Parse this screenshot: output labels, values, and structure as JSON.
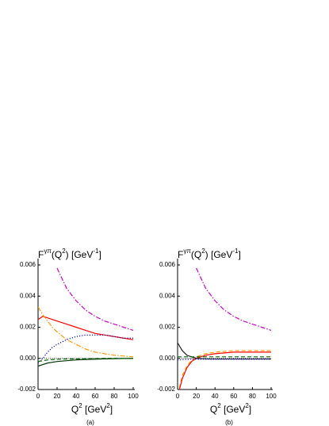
{
  "chart_data": [
    {
      "type": "line",
      "panel_label": "(a)",
      "ylabel_parts": [
        "F",
        "γπ",
        "(Q",
        "2",
        ") [GeV",
        "-1",
        "]"
      ],
      "xlabel_parts": [
        "Q",
        "2",
        " [GeV",
        "2",
        "]"
      ],
      "x": [
        0,
        5,
        10,
        15,
        20,
        30,
        40,
        50,
        60,
        70,
        80,
        90,
        100
      ],
      "xlim": [
        0,
        100
      ],
      "xticks": [
        0,
        20,
        40,
        60,
        80,
        100
      ],
      "ylim": [
        -0.002,
        0.006
      ],
      "yticks": [
        {
          "value": -0.002,
          "label": "-0.002"
        },
        {
          "value": 0,
          "label": "0.000"
        },
        {
          "value": 0.002,
          "label": "0.002"
        },
        {
          "value": 0.004,
          "label": "0.004"
        },
        {
          "value": 0.006,
          "label": "0.006"
        }
      ],
      "series": [
        {
          "color": "#cc00cc",
          "dash": "dashdot",
          "values": [
            null,
            null,
            null,
            null,
            0.0058,
            0.0045,
            0.0037,
            0.0031,
            0.0027,
            0.0024,
            0.0022,
            0.002,
            0.0018
          ]
        },
        {
          "color": "#ff0000",
          "dash": "solid",
          "values": [
            0.0025,
            0.0027,
            0.0026,
            0.0025,
            0.0024,
            0.0022,
            0.002,
            0.0018,
            0.0016,
            0.0015,
            0.0014,
            0.0013,
            0.0012
          ]
        },
        {
          "color": "#ff9900",
          "dash": "dashdot",
          "values": [
            0.0033,
            0.0028,
            0.0024,
            0.002,
            0.0017,
            0.0012,
            0.0009,
            0.0006,
            0.0004,
            0.0003,
            0.0002,
            0.00015,
            0.0001
          ]
        },
        {
          "color": "#0000cc",
          "dash": "dotted",
          "values": [
            -0.0003,
            0,
            0.0004,
            0.0007,
            0.0009,
            0.0012,
            0.0014,
            0.0015,
            0.0015,
            0.0015,
            0.0014,
            0.0013,
            0.0013
          ]
        },
        {
          "color": "#003300",
          "dash": "solid",
          "values": [
            -0.0005,
            -0.0004,
            -0.0003,
            -0.00025,
            -0.0002,
            -0.00015,
            -0.0001,
            -7e-05,
            -5e-05,
            -3e-05,
            -2e-05,
            -1e-05,
            0
          ]
        },
        {
          "color": "#006600",
          "dash": "dashed",
          "values": [
            -0.0002,
            -0.00015,
            -0.0001,
            -8e-05,
            -6e-05,
            -4e-05,
            -3e-05,
            -2e-05,
            -1e-05,
            0,
            0,
            0,
            0
          ]
        }
      ]
    },
    {
      "type": "line",
      "panel_label": "(b)",
      "ylabel_parts": [
        "F",
        "γπ",
        "(Q",
        "2",
        ") [GeV",
        "-1",
        "]"
      ],
      "xlabel_parts": [
        "Q",
        "2",
        " [GeV",
        "2",
        "]"
      ],
      "x": [
        0,
        2,
        5,
        10,
        15,
        20,
        30,
        40,
        50,
        60,
        70,
        80,
        90,
        100
      ],
      "xlim": [
        0,
        100
      ],
      "xticks": [
        0,
        20,
        40,
        60,
        80,
        100
      ],
      "ylim": [
        -0.002,
        0.006
      ],
      "yticks": [
        {
          "value": -0.002,
          "label": "-0.002"
        },
        {
          "value": 0,
          "label": "0.000"
        },
        {
          "value": 0.002,
          "label": "0.002"
        },
        {
          "value": 0.004,
          "label": "0.004"
        },
        {
          "value": 0.006,
          "label": "0.006"
        }
      ],
      "series": [
        {
          "color": "#cc00cc",
          "dash": "dashdot",
          "values": [
            null,
            null,
            null,
            null,
            null,
            0.0058,
            0.0045,
            0.0037,
            0.0031,
            0.0027,
            0.0024,
            0.0022,
            0.002,
            0.0018
          ]
        },
        {
          "color": "#ff9900",
          "dash": "dashed",
          "values": [
            null,
            -0.0019,
            -0.0011,
            -0.0005,
            -0.0001,
            0.0001,
            0.0003,
            0.0004,
            0.00045,
            0.0005,
            0.0005,
            0.0005,
            0.0005,
            0.0005
          ]
        },
        {
          "color": "#ff0000",
          "dash": "solid",
          "values": [
            null,
            -0.002,
            -0.0013,
            -0.0006,
            -0.0002,
            0,
            0.0002,
            0.0003,
            0.00035,
            0.0004,
            0.0004,
            0.0004,
            0.0004,
            0.0004
          ]
        },
        {
          "color": "#222222",
          "dash": "solid",
          "values": [
            0.001,
            0.0008,
            0.0005,
            0.0002,
            0.0001,
            0,
            -3e-05,
            -4e-05,
            -4e-05,
            -4e-05,
            -4e-05,
            -4e-05,
            -4e-05,
            -4e-05
          ]
        },
        {
          "color": "#0000cc",
          "dash": "dotted",
          "values": [
            -0.0001,
            -0.0001,
            -8e-05,
            -6e-05,
            -5e-05,
            -5e-05,
            -5e-05,
            -5e-05,
            -5e-05,
            -5e-05,
            -5e-05,
            -5e-05,
            -5e-05,
            -5e-05
          ]
        },
        {
          "color": "#006600",
          "dash": "dashed",
          "values": [
            0.0001,
            0.0001,
            0.0001,
            0.0001,
            0.0001,
            0.0001,
            0.0001,
            0.0001,
            0.0001,
            0.0001,
            0.0001,
            0.0001,
            0.0001,
            0.0001
          ]
        }
      ]
    }
  ]
}
